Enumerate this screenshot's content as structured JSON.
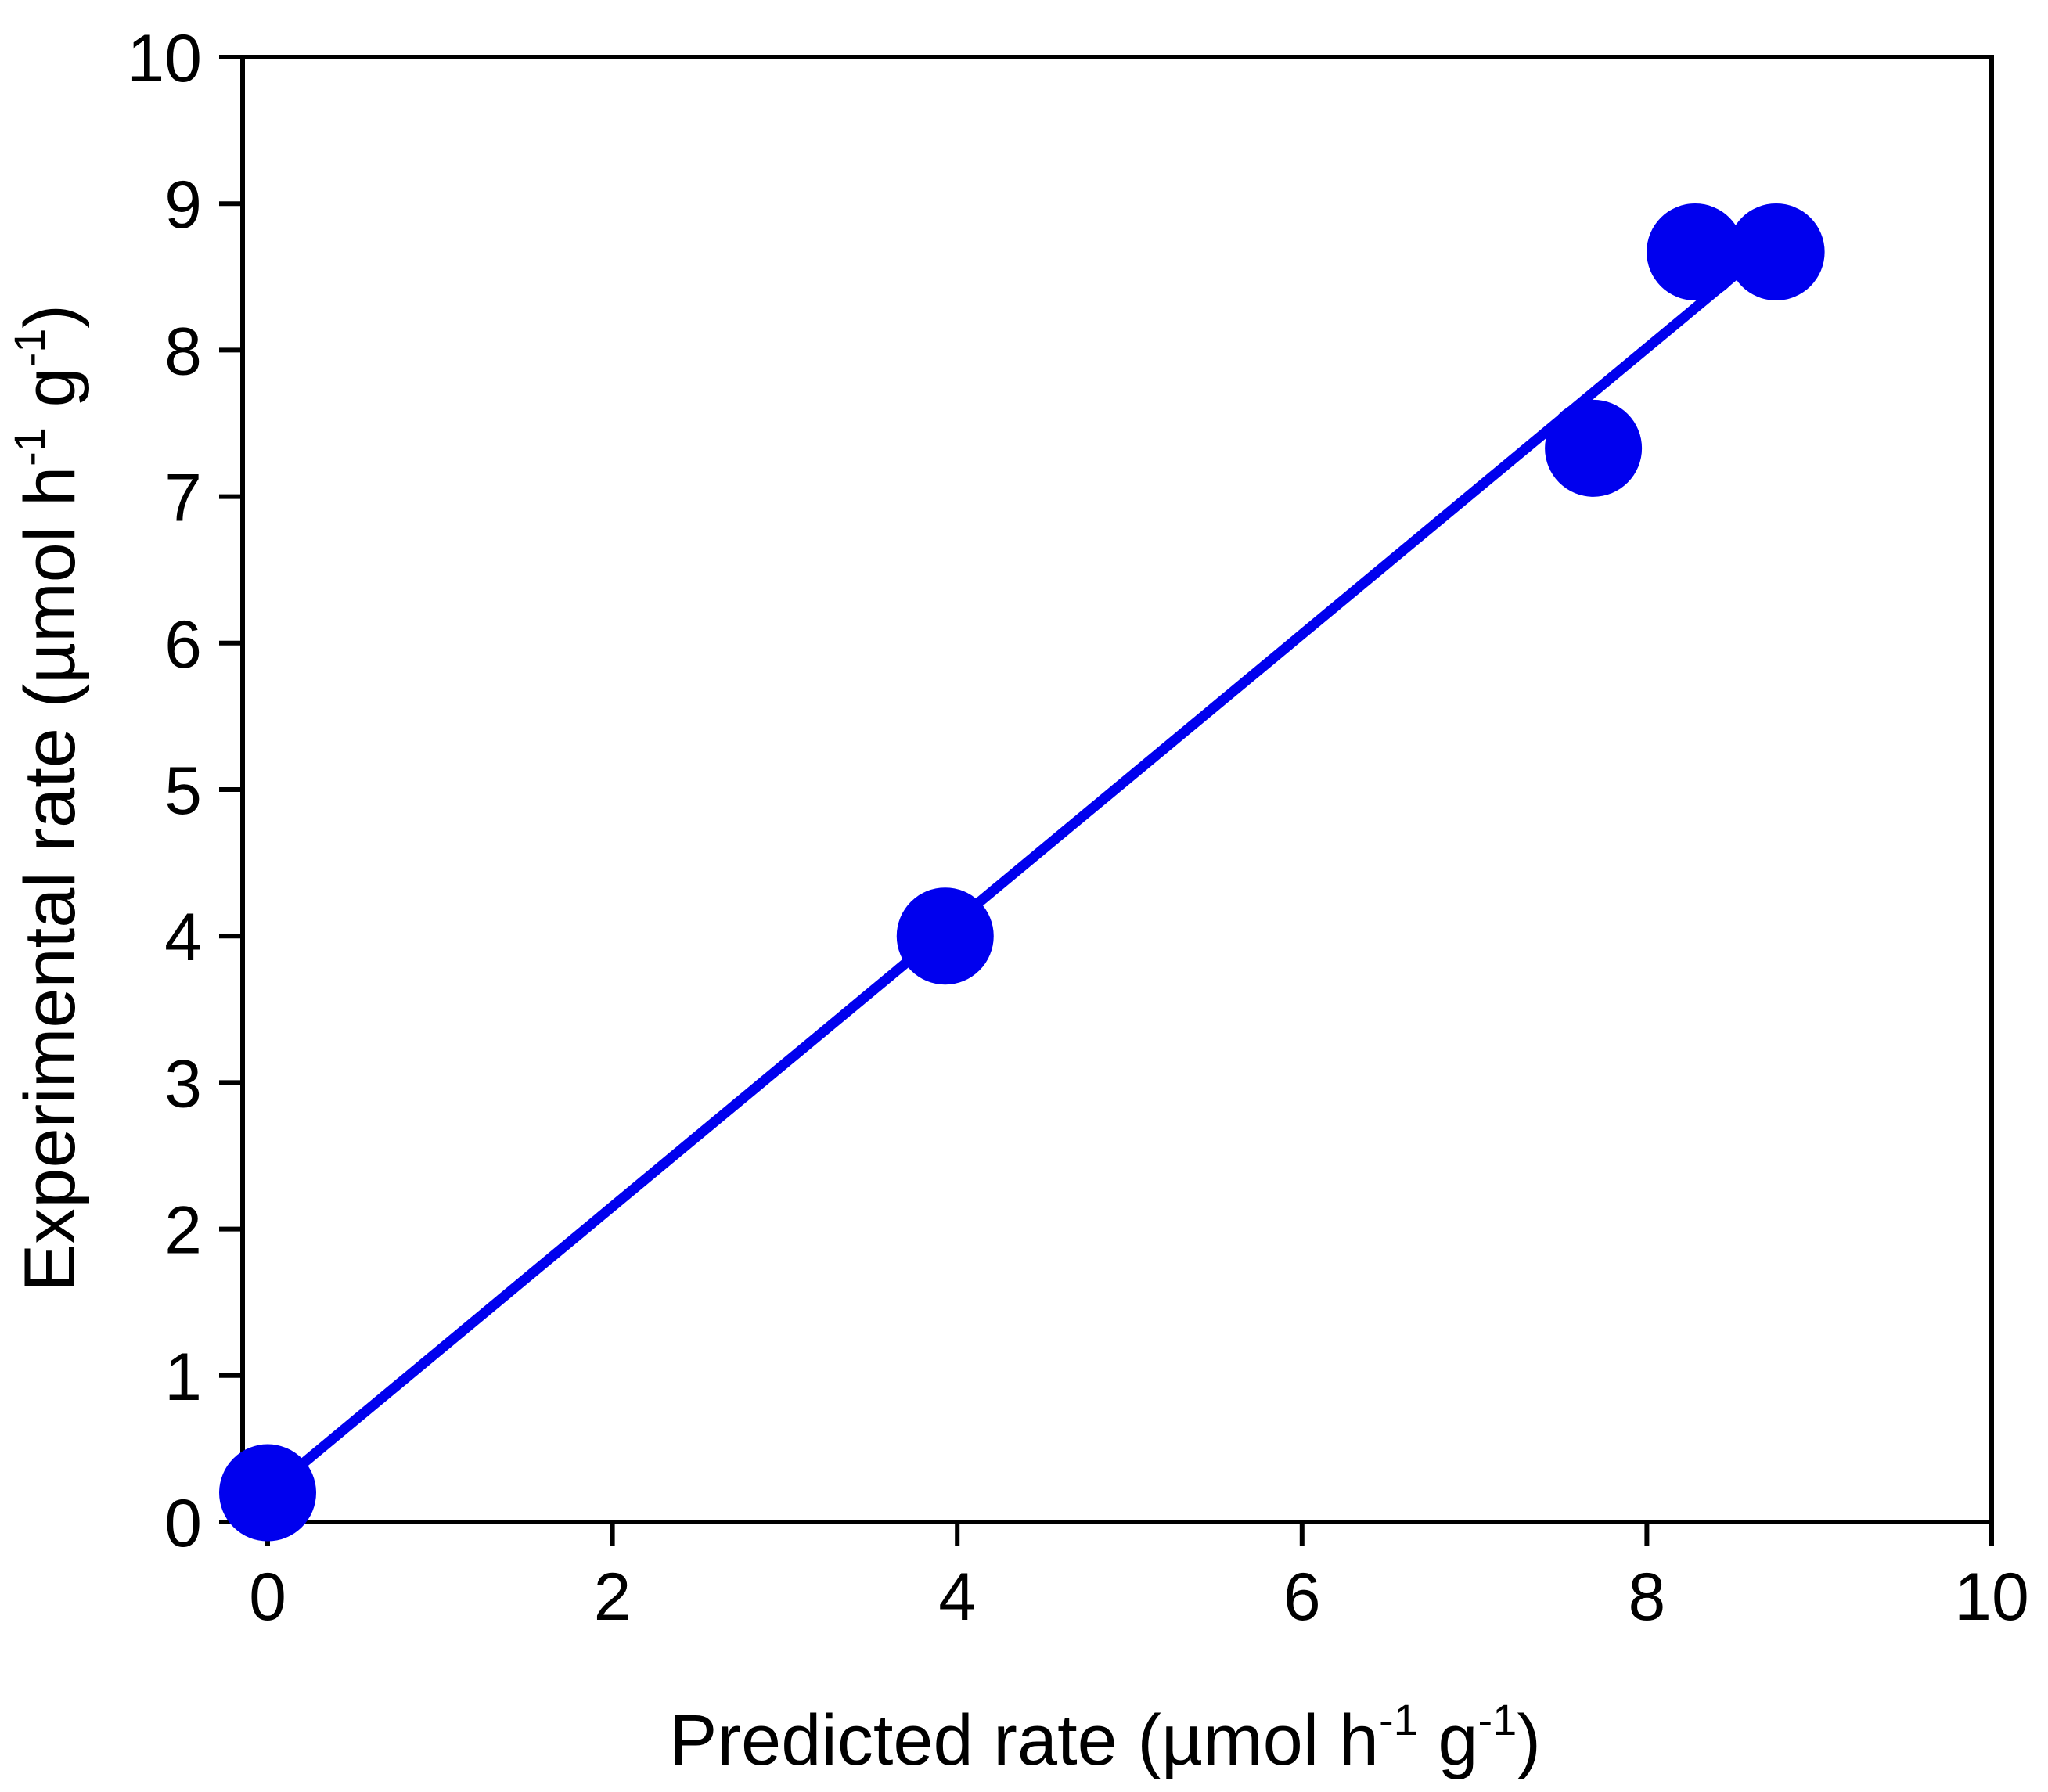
{
  "chart_data": {
    "type": "scatter",
    "xlabel": {
      "main": "Predicted rate (µmol h",
      "sup1": "-1",
      "mid": " g",
      "sup2": "-1",
      "end": ")"
    },
    "ylabel": {
      "main": "Experimental rate (µmol h",
      "sup1": "-1",
      "mid": " g",
      "sup2": "-1",
      "end": ")"
    },
    "xlim": [
      0,
      10
    ],
    "ylim": [
      0,
      10
    ],
    "xticks": [
      "0",
      "2",
      "4",
      "6",
      "8",
      "10"
    ],
    "yticks": [
      "0",
      "1",
      "2",
      "3",
      "4",
      "5",
      "6",
      "7",
      "8",
      "9",
      "10"
    ],
    "grid": false,
    "legend": "none",
    "series": [
      {
        "points": [
          {
            "x": 0.0,
            "y": 0.2
          },
          {
            "x": 3.93,
            "y": 4.0
          },
          {
            "x": 7.69,
            "y": 7.33
          },
          {
            "x": 8.28,
            "y": 8.67
          },
          {
            "x": 8.75,
            "y": 8.67
          }
        ],
        "color": "#0000ee"
      }
    ],
    "fit_line": {
      "x": [
        0.0,
        8.6
      ],
      "y": [
        0.2,
        8.6
      ],
      "color": "#0000ee"
    }
  }
}
